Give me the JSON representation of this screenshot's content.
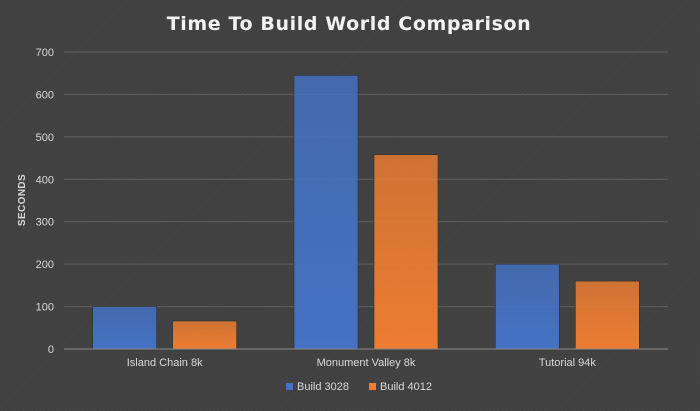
{
  "chart_data": {
    "type": "bar",
    "title": "Time To Build World Comparison",
    "xlabel": "",
    "ylabel": "SECONDS",
    "categories": [
      "Island Chain 8k",
      "Monument Valley 8k",
      "Tutorial 94k"
    ],
    "series": [
      {
        "name": "Build 3028",
        "values": [
          100,
          645,
          200
        ],
        "color": "#4472c4"
      },
      {
        "name": "Build 4012",
        "values": [
          66,
          458,
          160
        ],
        "color": "#ed7d31"
      }
    ],
    "ylim": [
      0,
      700
    ],
    "yticks": [
      0,
      100,
      200,
      300,
      400,
      500,
      600,
      700
    ],
    "grid": true,
    "legend_position": "bottom"
  }
}
